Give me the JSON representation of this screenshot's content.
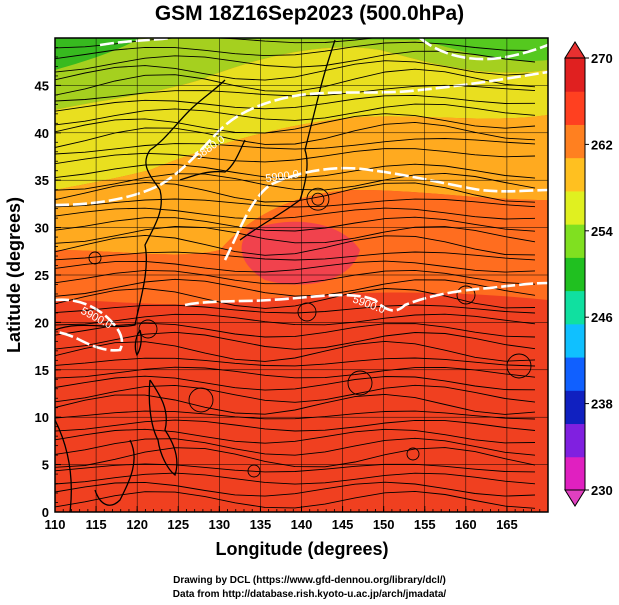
{
  "title": "GSM 18Z16Sep2023 (500.0hPa)",
  "x_axis": {
    "label": "Longitude (degrees)",
    "ticks": [
      110,
      115,
      120,
      125,
      130,
      135,
      140,
      145,
      150,
      155,
      160,
      165
    ],
    "range": [
      110,
      170
    ]
  },
  "y_axis": {
    "label": "Latitude  (degrees)",
    "ticks": [
      0,
      5,
      10,
      15,
      20,
      25,
      30,
      35,
      40,
      45
    ],
    "range": [
      0,
      50
    ]
  },
  "colorbar": {
    "ticks": [
      230,
      238,
      246,
      254,
      262,
      270
    ],
    "range": [
      230,
      270
    ],
    "colors": [
      "#e020c0",
      "#8020e0",
      "#1020c0",
      "#1060ff",
      "#10c0ff",
      "#10e0a0",
      "#20c020",
      "#80e020",
      "#e0f020",
      "#ffc020",
      "#ff8020",
      "#ff4020",
      "#e02020"
    ]
  },
  "contours": [
    {
      "label": "5880.0"
    },
    {
      "label": "5900.0"
    },
    {
      "label": "5900.0"
    },
    {
      "label": "5900.0"
    }
  ],
  "footer": {
    "line1": "Drawing by DCL (https://www.gfd-dennou.org/library/dcl/)",
    "line2": "Data from http://database.rish.kyoto-u.ac.jp/arch/jmadata/"
  }
}
